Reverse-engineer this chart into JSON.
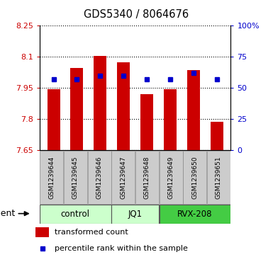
{
  "title": "GDS5340 / 8064676",
  "samples": [
    "GSM1239644",
    "GSM1239645",
    "GSM1239646",
    "GSM1239647",
    "GSM1239648",
    "GSM1239649",
    "GSM1239650",
    "GSM1239651"
  ],
  "bar_values": [
    7.943,
    8.048,
    8.105,
    8.073,
    7.92,
    7.943,
    8.035,
    7.788
  ],
  "percentile_values": [
    57,
    57,
    60,
    60,
    57,
    57,
    62,
    57
  ],
  "y_min": 7.65,
  "y_max": 8.25,
  "y_ticks": [
    7.65,
    7.8,
    7.95,
    8.1,
    8.25
  ],
  "y_tick_labels": [
    "7.65",
    "7.8",
    "7.95",
    "8.1",
    "8.25"
  ],
  "y2_ticks": [
    0,
    25,
    50,
    75,
    100
  ],
  "y2_tick_labels": [
    "0",
    "25",
    "50",
    "75",
    "100%"
  ],
  "bar_color": "#cc0000",
  "dot_color": "#0000cc",
  "left_tick_color": "#cc0000",
  "right_tick_color": "#0000cc",
  "groups": [
    {
      "label": "control",
      "start": 0,
      "end": 3,
      "color": "#ccffcc"
    },
    {
      "label": "JQ1",
      "start": 3,
      "end": 5,
      "color": "#ccffcc"
    },
    {
      "label": "RVX-208",
      "start": 5,
      "end": 8,
      "color": "#44cc44"
    }
  ],
  "agent_label": "agent",
  "legend_bar_label": "transformed count",
  "legend_dot_label": "percentile rank within the sample",
  "bar_bottom": 7.65,
  "plot_bg_color": "#ffffff",
  "sample_bg_color": "#cccccc"
}
